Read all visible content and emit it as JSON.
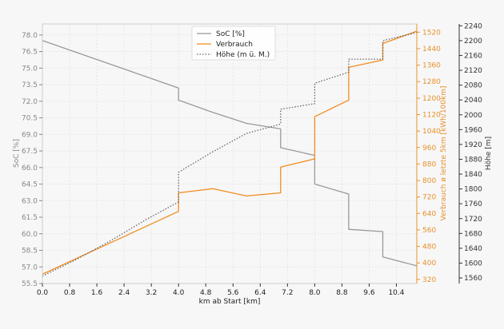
{
  "chart_data": {
    "type": "line",
    "xlabel": "km ab Start [km]",
    "ylabel_left": "SoC [%]",
    "ylabel_right1": "Verbrauch ø letzte 5km [kWh/100km]",
    "ylabel_right2": "Höhe [m]",
    "xlim": [
      0,
      11
    ],
    "ylim_left": [
      55.5,
      79
    ],
    "ylim_right1": [
      300,
      1560
    ],
    "ylim_right2": [
      1545,
      2245
    ],
    "grid": true,
    "legend_placement": "top-center",
    "colors": {
      "soc": "#999999",
      "verbrauch": "#f28c1e",
      "hoehe": "#666666",
      "left_axis": "#888888",
      "right1_axis": "#e8912e",
      "right2_axis": "#333333"
    },
    "x_ticks": [
      "0.0",
      "0.8",
      "1.6",
      "2.4",
      "3.2",
      "4.0",
      "4.8",
      "5.6",
      "6.4",
      "7.2",
      "8.0",
      "8.8",
      "9.6",
      "10.4"
    ],
    "y_ticks_left": [
      "55.5",
      "57.0",
      "58.5",
      "60.0",
      "61.5",
      "63.0",
      "64.5",
      "66.0",
      "67.5",
      "69.0",
      "70.5",
      "72.0",
      "73.5",
      "75.0",
      "76.5",
      "78.0"
    ],
    "y_ticks_right1": [
      "320",
      "400",
      "480",
      "560",
      "640",
      "720",
      "800",
      "880",
      "960",
      "1040",
      "1120",
      "1200",
      "1280",
      "1360",
      "1440",
      "1520"
    ],
    "y_ticks_right2": [
      "1560",
      "1600",
      "1640",
      "1680",
      "1720",
      "1760",
      "1800",
      "1840",
      "1880",
      "1920",
      "1960",
      "2000",
      "2040",
      "2080",
      "2120",
      "2160",
      "2200",
      "2240"
    ],
    "series": [
      {
        "name": "SoC [%]",
        "axis": "left",
        "x": [
          0,
          4,
          4,
          5,
          6,
          7,
          7,
          8,
          8,
          9,
          9,
          10,
          10,
          11
        ],
        "y": [
          77.5,
          73.2,
          72.1,
          71.0,
          70.0,
          69.5,
          67.8,
          67.1,
          64.5,
          63.6,
          60.4,
          60.2,
          57.9,
          57.1
        ]
      },
      {
        "name": "Verbrauch",
        "axis": "right1",
        "x": [
          0,
          4,
          4,
          5,
          6,
          7,
          7,
          8,
          8,
          9,
          9,
          10,
          10,
          11
        ],
        "y": [
          345,
          650,
          740,
          760,
          725,
          740,
          865,
          905,
          1110,
          1190,
          1350,
          1385,
          1465,
          1525
        ]
      },
      {
        "name": "Höhe (m ü. M.)",
        "axis": "right2",
        "x": [
          0,
          1,
          2,
          3,
          4,
          4,
          5,
          6,
          7,
          7,
          8,
          8,
          9,
          9,
          10,
          10,
          11
        ],
        "y": [
          1565,
          1610,
          1660,
          1715,
          1765,
          1845,
          1900,
          1950,
          1975,
          2015,
          2030,
          2085,
          2115,
          2150,
          2150,
          2200,
          2222
        ]
      }
    ]
  }
}
